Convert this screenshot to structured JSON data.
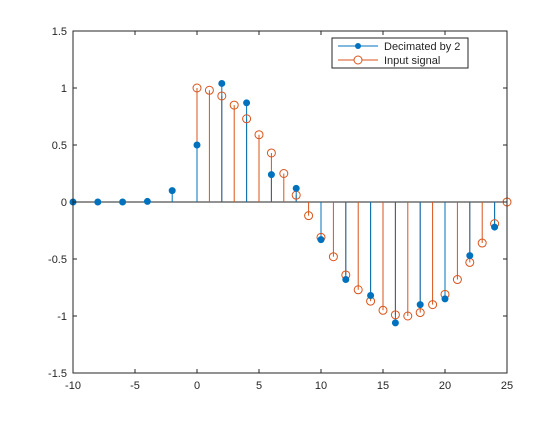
{
  "chart_data": {
    "type": "stem",
    "xlim": [
      -10,
      25
    ],
    "ylim": [
      -1.5,
      1.5
    ],
    "x_ticks": [
      "-10",
      "-5",
      "0",
      "5",
      "10",
      "15",
      "20",
      "25"
    ],
    "y_ticks": [
      "1.5",
      "1",
      "0.5",
      "0",
      "-0.5",
      "-1",
      "-1.5"
    ],
    "x_tick_values": [
      -10,
      -5,
      0,
      5,
      10,
      15,
      20,
      25
    ],
    "y_tick_values": [
      1.5,
      1,
      0.5,
      0,
      -0.5,
      -1,
      -1.5
    ],
    "grid": false,
    "legend_position": "top-right",
    "series": [
      {
        "name": "Decimated by 2",
        "color": "#0072BD",
        "marker": "filled-circle",
        "x": [
          -10,
          -8,
          -6,
          -4,
          -2,
          0,
          2,
          4,
          6,
          8,
          10,
          12,
          14,
          16,
          18,
          20,
          22,
          24
        ],
        "y": [
          0,
          0,
          0,
          0.005,
          0.1,
          0.5,
          1.04,
          0.87,
          0.24,
          0.12,
          -0.33,
          -0.68,
          -0.82,
          -1.06,
          -0.9,
          -0.85,
          -0.47,
          -0.22
        ]
      },
      {
        "name": "Input signal",
        "color": "#D95319",
        "marker": "open-circle",
        "x": [
          0,
          1,
          2,
          3,
          4,
          5,
          6,
          7,
          8,
          9,
          10,
          11,
          12,
          13,
          14,
          15,
          16,
          17,
          18,
          19,
          20,
          21,
          22,
          23,
          24,
          25
        ],
        "y": [
          1.0,
          0.98,
          0.93,
          0.85,
          0.73,
          0.59,
          0.43,
          0.25,
          0.06,
          -0.12,
          -0.31,
          -0.48,
          -0.64,
          -0.77,
          -0.87,
          -0.95,
          -0.99,
          -1.0,
          -0.97,
          -0.9,
          -0.81,
          -0.68,
          -0.53,
          -0.36,
          -0.19,
          0.0
        ]
      }
    ]
  }
}
